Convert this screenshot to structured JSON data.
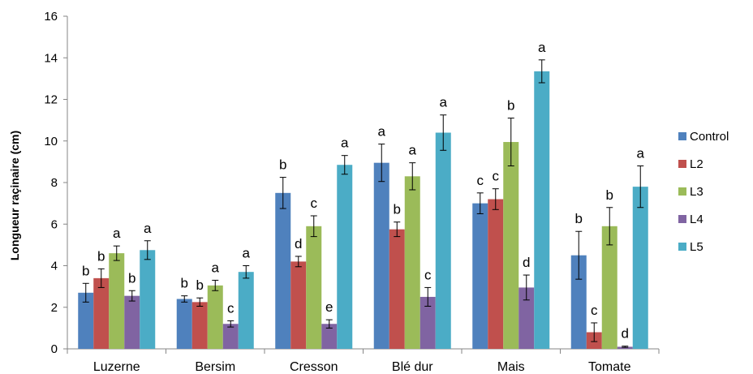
{
  "chart_data": {
    "type": "bar",
    "title": "",
    "xlabel": "",
    "ylabel": "Longueur raçinaire (cm)",
    "ylim": [
      0,
      16
    ],
    "yticks": [
      0,
      2,
      4,
      6,
      8,
      10,
      12,
      14,
      16
    ],
    "grid": false,
    "legend_position": "right",
    "categories": [
      "Luzerne",
      "Bersim",
      "Cresson",
      "Blé dur",
      "Mais",
      "Tomate"
    ],
    "series": [
      {
        "name": "Control",
        "color": "#4F81BD",
        "values": [
          2.7,
          2.4,
          7.5,
          8.95,
          7.0,
          4.5
        ],
        "errors": [
          0.45,
          0.15,
          0.75,
          0.9,
          0.5,
          1.15
        ],
        "labels": [
          "b",
          "b",
          "b",
          "a",
          "c",
          "b"
        ]
      },
      {
        "name": "L2",
        "color": "#C0504D",
        "values": [
          3.4,
          2.25,
          4.2,
          5.75,
          7.2,
          0.8
        ],
        "errors": [
          0.45,
          0.2,
          0.25,
          0.35,
          0.5,
          0.45
        ],
        "labels": [
          "b",
          "b",
          "d",
          "b",
          "c",
          "c"
        ]
      },
      {
        "name": "L3",
        "color": "#9BBB59",
        "values": [
          4.6,
          3.05,
          5.9,
          8.3,
          9.95,
          5.9
        ],
        "errors": [
          0.35,
          0.25,
          0.5,
          0.65,
          1.15,
          0.9
        ],
        "labels": [
          "a",
          "a",
          "c",
          "a",
          "b",
          "b"
        ]
      },
      {
        "name": "L4",
        "color": "#8064A2",
        "values": [
          2.55,
          1.2,
          1.2,
          2.5,
          2.95,
          0.1
        ],
        "errors": [
          0.25,
          0.15,
          0.2,
          0.45,
          0.6,
          0.03
        ],
        "labels": [
          "b",
          "c",
          "e",
          "c",
          "d",
          "d"
        ]
      },
      {
        "name": "L5",
        "color": "#4BACC6",
        "values": [
          4.75,
          3.7,
          8.85,
          10.4,
          13.35,
          7.8
        ],
        "errors": [
          0.45,
          0.3,
          0.45,
          0.85,
          0.55,
          1.0
        ],
        "labels": [
          "a",
          "a",
          "a",
          "a",
          "a",
          "a"
        ]
      }
    ]
  }
}
